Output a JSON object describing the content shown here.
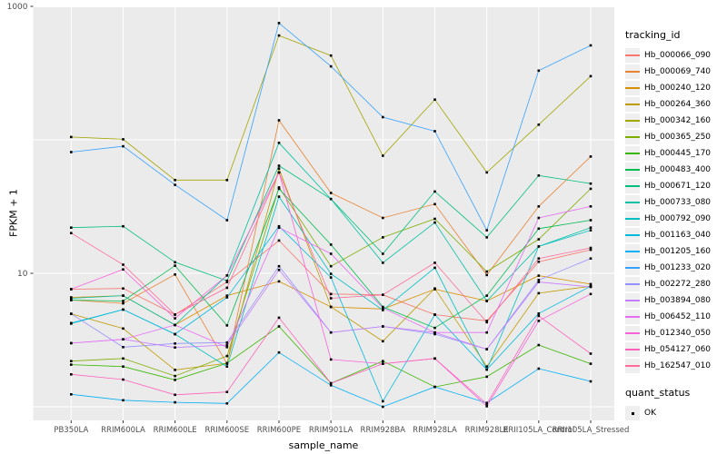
{
  "axes": {
    "x_title": "sample_name",
    "y_title": "FPKM + 1",
    "y_tick_labels": [
      "1000",
      "10"
    ]
  },
  "legend": {
    "tracking_title": "tracking_id",
    "quant_title": "quant_status",
    "quant_ok_label": "OK"
  },
  "colors": {
    "page_bg": "#FFFFFF",
    "panel_bg": "#EBEBEB",
    "grid": "#FFFFFF",
    "tick_mark": "#333333",
    "tick_text": "#4D4D4D",
    "point": "#000000",
    "legend_key_bg": "#EFEFEF"
  },
  "chart_data": {
    "type": "line",
    "title": "",
    "xlabel": "sample_name",
    "ylabel": "FPKM + 1",
    "y_scale": "log10",
    "ylim": [
      1,
      1000
    ],
    "y_labeled_breaks": [
      1000,
      10
    ],
    "y_gridlines": [
      1,
      10,
      100,
      1000
    ],
    "grid": "on",
    "legend_position": "right",
    "legend_titles": {
      "series": "tracking_id",
      "points": "quant_status"
    },
    "point_legend_items": [
      {
        "label": "OK",
        "marker": "black-square"
      }
    ],
    "x_categories": [
      "PB350LA",
      "RRIM600LA",
      "RRIM600LE",
      "RRIM600SE",
      "RRIM600PE",
      "RRIM901LA",
      "RRIM928BA",
      "RRIM928LA",
      "RRIM928LE",
      "RRII105LA_Control",
      "RRII105LA_Stressed"
    ],
    "series": [
      {
        "name": "Hb_000066_090",
        "color": "#F8766D",
        "values": [
          7.6,
          7.7,
          4.9,
          8.6,
          17.6,
          7.0,
          6.9,
          4.9,
          4.4,
          12.2,
          15.0
        ]
      },
      {
        "name": "Hb_000069_740",
        "color": "#EA8331",
        "values": [
          6.3,
          5.95,
          9.8,
          2.1,
          140,
          40,
          26,
          33,
          9.7,
          31.7,
          75
        ]
      },
      {
        "name": "Hb_000240_120",
        "color": "#D89000",
        "values": [
          6.6,
          6.8,
          4.1,
          6.8,
          8.7,
          5.6,
          5.4,
          7.6,
          6.2,
          9.6,
          8.3
        ]
      },
      {
        "name": "Hb_000264_360",
        "color": "#C09B00",
        "values": [
          4.97,
          3.86,
          1.89,
          2.12,
          61,
          5.6,
          3.1,
          7.7,
          2.0,
          7.1,
          8.0
        ]
      },
      {
        "name": "Hb_000342_160",
        "color": "#A3A500",
        "values": [
          105,
          101,
          50,
          50,
          605,
          428,
          76,
          200,
          57,
          130,
          300
        ]
      },
      {
        "name": "Hb_000365_250",
        "color": "#7CAE00",
        "values": [
          2.2,
          2.3,
          1.7,
          2.4,
          44,
          11.3,
          18.6,
          25.6,
          10.3,
          18.0,
          43
        ]
      },
      {
        "name": "Hb_000445_170",
        "color": "#39B600",
        "values": [
          2.07,
          2.0,
          1.59,
          2.12,
          4.0,
          1.5,
          2.2,
          1.41,
          1.68,
          2.9,
          2.1
        ]
      },
      {
        "name": "Hb_000483_400",
        "color": "#00BB4E",
        "values": [
          6.3,
          6.2,
          11.4,
          4.07,
          43,
          16.4,
          5.6,
          3.9,
          6.8,
          21.6,
          25
        ]
      },
      {
        "name": "Hb_000671_120",
        "color": "#00BF7D",
        "values": [
          22,
          22.5,
          12.1,
          8.8,
          64,
          36,
          14,
          41,
          18.6,
          54,
          47
        ]
      },
      {
        "name": "Hb_000733_080",
        "color": "#00C1A3",
        "values": [
          6.5,
          6.8,
          4.1,
          9.65,
          95,
          36,
          12,
          24,
          6.2,
          15.9,
          22
        ]
      },
      {
        "name": "Hb_000792_090",
        "color": "#00BFC4",
        "values": [
          4.2,
          5.35,
          3.5,
          2.0,
          37.5,
          9.9,
          5.3,
          11.0,
          1.9,
          15.9,
          21
        ]
      },
      {
        "name": "Hb_001163_040",
        "color": "#00BAE0",
        "values": [
          4.24,
          5.35,
          3.5,
          6.6,
          22.5,
          9.3,
          1.1,
          4.9,
          1.9,
          5.0,
          8.0
        ]
      },
      {
        "name": "Hb_001205_160",
        "color": "#00B0F6",
        "values": [
          1.24,
          1.12,
          1.08,
          1.06,
          2.55,
          1.45,
          1.0,
          1.41,
          1.07,
          1.93,
          1.55
        ]
      },
      {
        "name": "Hb_001233_020",
        "color": "#35A2FF",
        "values": [
          81,
          89.5,
          46,
          25,
          750,
          355,
          148,
          116,
          21,
          330,
          510
        ]
      },
      {
        "name": "Hb_002272_280",
        "color": "#9590FF",
        "values": [
          4.97,
          2.8,
          2.98,
          3.03,
          11.3,
          3.6,
          4.0,
          3.5,
          2.7,
          8.9,
          12.9
        ]
      },
      {
        "name": "Hb_003894_080",
        "color": "#C77CFF",
        "values": [
          3.0,
          3.2,
          2.78,
          2.9,
          10.6,
          3.6,
          4.0,
          3.6,
          2.7,
          8.6,
          7.9
        ]
      },
      {
        "name": "Hb_006452_110",
        "color": "#E76BF3",
        "values": [
          3.0,
          3.2,
          4.1,
          2.8,
          22,
          14,
          5.5,
          3.6,
          3.6,
          26,
          31.7
        ]
      },
      {
        "name": "Hb_012340_050",
        "color": "#FA62DB",
        "values": [
          7.6,
          10.7,
          4.6,
          9.65,
          57,
          2.26,
          2.1,
          2.3,
          1.01,
          4.4,
          7.0
        ]
      },
      {
        "name": "Hb_054127_060",
        "color": "#FF62BC",
        "values": [
          1.75,
          1.6,
          1.23,
          1.29,
          4.65,
          1.5,
          2.1,
          2.3,
          1.05,
          4.8,
          2.5
        ]
      },
      {
        "name": "Hb_162547_010",
        "color": "#FF6A98",
        "values": [
          20,
          11.6,
          4.9,
          7.8,
          57,
          6.5,
          6.9,
          12.0,
          4.3,
          12.9,
          15.5
        ]
      }
    ]
  }
}
